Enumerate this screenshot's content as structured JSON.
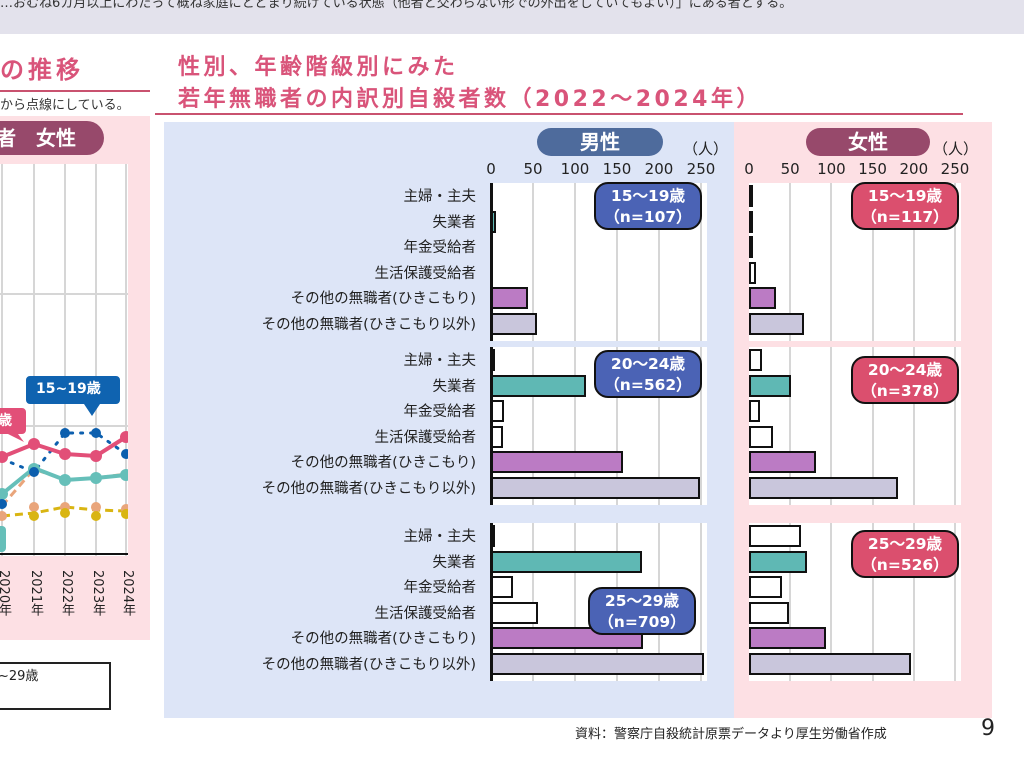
{
  "top_band": {
    "text": "…おむね6カ月以上にわたって概ね家庭にとどまり続けている状態（他者と交わらない形での外出をしていてもよい）」にある者とする。"
  },
  "left_panel": {
    "title": "の推移",
    "note": "から点線にしている。",
    "pill": "者　女性",
    "callouts": [
      "15~19歳",
      "歳"
    ],
    "years": [
      "2020年",
      "2021年",
      "2022年",
      "2023年",
      "2024年"
    ],
    "legend_text": "~29歳"
  },
  "main": {
    "title_line1": "性別、年齢階級別にみた",
    "title_line2": "若年無職者の内訳別自殺者数（2022～2024年）",
    "male_label": "男性",
    "female_label": "女性",
    "unit": "（人）",
    "source": "資料：警察庁自殺統計原票データより厚生労働省作成",
    "page_number": "9"
  },
  "chart_data": {
    "type": "bar",
    "orientation": "horizontal",
    "title": "性別、年齢階級別にみた若年無職者の内訳別自殺者数（2022～2024年）",
    "xlabel": "（人）",
    "xlim": [
      0,
      250
    ],
    "xticks": [
      0,
      50,
      100,
      150,
      200,
      250
    ],
    "grid": true,
    "categories": [
      "主婦・主夫",
      "失業者",
      "年金受給者",
      "生活保護受給者",
      "その他の無職者(ひきこもり)",
      "その他の無職者(ひきこもり以外)"
    ],
    "category_colors": [
      "#ffffff",
      "#5fb8b4",
      "#ffffff",
      "#ffffff",
      "#bb7bc4",
      "#c9c6dc"
    ],
    "panels": [
      {
        "sex": "男性",
        "age": "15～19歳",
        "n_label": "（n=107）",
        "n": 107,
        "values": [
          0,
          6,
          0,
          0,
          44,
          55
        ]
      },
      {
        "sex": "男性",
        "age": "20～24歳",
        "n_label": "（n=562）",
        "n": 562,
        "values": [
          1,
          113,
          16,
          14,
          157,
          249
        ]
      },
      {
        "sex": "男性",
        "age": "25～29歳",
        "n_label": "（n=709）",
        "n": 709,
        "values": [
          1,
          180,
          26,
          56,
          181,
          254
        ]
      },
      {
        "sex": "女性",
        "age": "15～19歳",
        "n_label": "（n=117）",
        "n": 117,
        "values": [
          3,
          1,
          2,
          8,
          33,
          67
        ]
      },
      {
        "sex": "女性",
        "age": "20～24歳",
        "n_label": "（n=378）",
        "n": 378,
        "values": [
          16,
          51,
          13,
          29,
          81,
          181
        ]
      },
      {
        "sex": "女性",
        "age": "25～29歳",
        "n_label": "（n=526）",
        "n": 526,
        "values": [
          63,
          70,
          40,
          49,
          93,
          197
        ]
      }
    ]
  }
}
